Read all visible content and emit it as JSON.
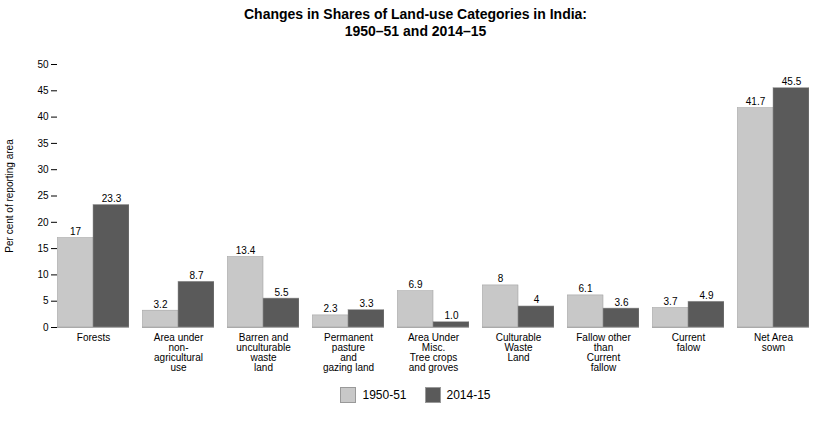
{
  "chart_data": {
    "type": "bar",
    "title": "Changes in Shares of Land-use Categories in India:\n1950–51 and 2014–15",
    "ylabel": "Per cent of reporting area",
    "categories": [
      "Forests",
      "Area under\nnon-\nagricultural\nuse",
      "Barren and\nunculturable\nwaste\nland",
      "Permanent\npasture\nand\ngazing land",
      "Area Under\nMisc.\nTree crops\nand groves",
      "Culturable\nWaste\nLand",
      "Fallow other\nthan\nCurrent\nfallow",
      "Current\nfalow",
      "Net Area\nsown"
    ],
    "series": [
      {
        "name": "1950-51",
        "color": "#c8c8c8",
        "values": [
          17,
          3.2,
          13.4,
          2.3,
          6.9,
          8,
          6.1,
          3.7,
          41.7
        ],
        "value_labels": [
          "17",
          "3.2",
          "13.4",
          "2.3",
          "6.9",
          "8",
          "6.1",
          "3.7",
          "41.7"
        ]
      },
      {
        "name": "2014-15",
        "color": "#5a5a5a",
        "values": [
          23.3,
          8.7,
          5.5,
          3.3,
          1.0,
          4,
          3.6,
          4.9,
          45.5
        ],
        "value_labels": [
          "23.3",
          "8.7",
          "5.5",
          "3.3",
          "1.0",
          "4",
          "3.6",
          "4.9",
          "45.5"
        ]
      }
    ],
    "ylim": [
      0,
      50
    ],
    "yticks": [
      0,
      5,
      10,
      15,
      20,
      25,
      30,
      35,
      40,
      45,
      50
    ],
    "grid": false,
    "legend": "bottom",
    "data_labels": true
  }
}
